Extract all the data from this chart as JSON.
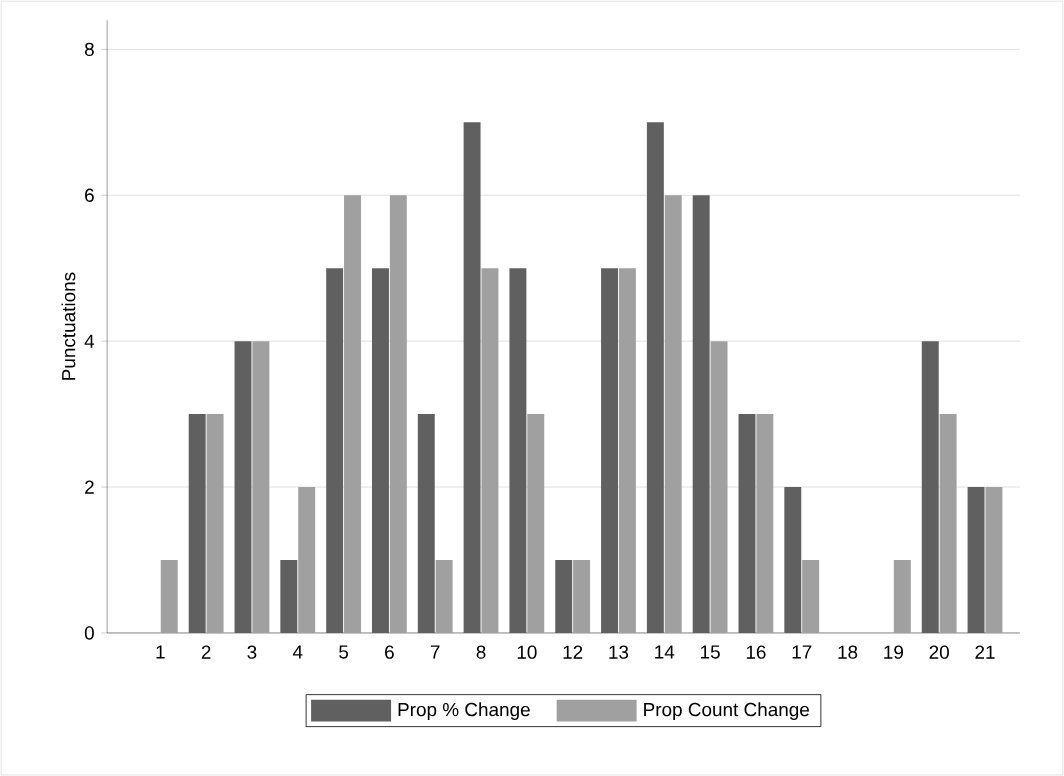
{
  "chart_data": {
    "type": "bar",
    "ylabel": "Punctuations",
    "categories": [
      "1",
      "2",
      "3",
      "4",
      "5",
      "6",
      "7",
      "8",
      "10",
      "12",
      "13",
      "14",
      "15",
      "16",
      "17",
      "18",
      "19",
      "20",
      "21"
    ],
    "series": [
      {
        "name": "Prop % Change",
        "color": "#606060",
        "values": [
          0,
          3,
          4,
          1,
          5,
          5,
          3,
          7,
          5,
          1,
          5,
          7,
          6,
          3,
          2,
          0,
          0,
          4,
          2
        ]
      },
      {
        "name": "Prop Count Change",
        "color": "#a0a0a0",
        "values": [
          1,
          3,
          4,
          2,
          6,
          6,
          1,
          5,
          3,
          1,
          5,
          6,
          4,
          3,
          1,
          0,
          1,
          3,
          2
        ]
      }
    ],
    "ylim": [
      0,
      8.4
    ],
    "yticks": [
      0,
      2,
      4,
      6,
      8
    ],
    "grid": "y",
    "legend": "bottom"
  }
}
